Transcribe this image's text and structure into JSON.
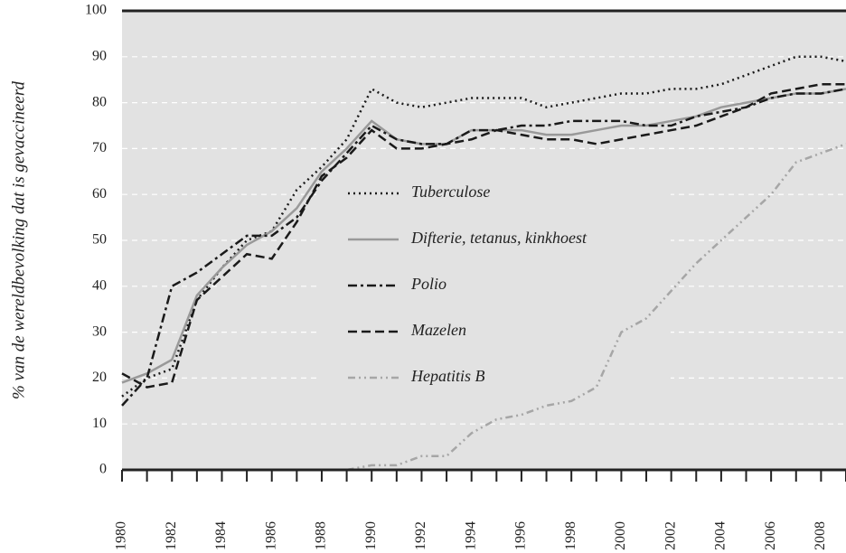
{
  "chart_data": {
    "type": "line",
    "ylabel": "% van de wereldbevolking dat is gevaccineerd",
    "x": [
      1980,
      1981,
      1982,
      1983,
      1984,
      1985,
      1986,
      1987,
      1988,
      1989,
      1990,
      1991,
      1992,
      1993,
      1994,
      1995,
      1996,
      1997,
      1998,
      1999,
      2000,
      2001,
      2002,
      2003,
      2004,
      2005,
      2006,
      2007,
      2008,
      2009
    ],
    "series": [
      {
        "name": "Tuberculose",
        "color": "#1a1a1a",
        "dash": "2,4",
        "values": [
          16,
          20,
          22,
          37,
          44,
          50,
          52,
          61,
          66,
          72,
          83,
          80,
          79,
          80,
          81,
          81,
          81,
          79,
          80,
          81,
          82,
          82,
          83,
          83,
          84,
          86,
          88,
          90,
          90,
          89
        ]
      },
      {
        "name": "Difterie, tetanus, kinkhoest",
        "color": "#999999",
        "dash": "none",
        "values": [
          19,
          21,
          24,
          38,
          44,
          49,
          52,
          57,
          65,
          70,
          76,
          72,
          71,
          71,
          74,
          74,
          74,
          73,
          73,
          74,
          75,
          75,
          76,
          77,
          79,
          80,
          81,
          82,
          82,
          83
        ]
      },
      {
        "name": "Polio",
        "color": "#1a1a1a",
        "dash": "10,4,3,4",
        "values": [
          14,
          20,
          40,
          43,
          47,
          51,
          51,
          55,
          63,
          69,
          75,
          72,
          71,
          71,
          74,
          74,
          75,
          75,
          76,
          76,
          76,
          75,
          75,
          77,
          78,
          79,
          81,
          82,
          82,
          83
        ]
      },
      {
        "name": "Mazelen",
        "color": "#1a1a1a",
        "dash": "10,5",
        "values": [
          21,
          18,
          19,
          37,
          42,
          47,
          46,
          54,
          64,
          68,
          74,
          70,
          70,
          71,
          72,
          74,
          73,
          72,
          72,
          71,
          72,
          73,
          74,
          75,
          77,
          79,
          82,
          83,
          84,
          84
        ]
      },
      {
        "name": "Hepatitis B",
        "color": "#a6a6a6",
        "dash": "8,4,2,4,2,4",
        "values": [
          null,
          null,
          null,
          null,
          null,
          null,
          null,
          null,
          null,
          0,
          1,
          1,
          3,
          3,
          8,
          11,
          12,
          14,
          15,
          18,
          30,
          33,
          39,
          45,
          50,
          55,
          60,
          67,
          69,
          71
        ]
      }
    ],
    "xlim": [
      1980,
      2009
    ],
    "xticks": [
      1980,
      1982,
      1984,
      1986,
      1988,
      1990,
      1992,
      1994,
      1996,
      1998,
      2000,
      2002,
      2004,
      2006,
      2008
    ],
    "xminor_ticks": [
      1981,
      1983,
      1985,
      1987,
      1989,
      1991,
      1993,
      1995,
      1997,
      1999,
      2001,
      2003,
      2005,
      2007,
      2009
    ],
    "ylim": [
      0,
      100
    ],
    "yticks": [
      0,
      10,
      20,
      30,
      40,
      50,
      60,
      70,
      80,
      90,
      100
    ],
    "grid": true
  }
}
